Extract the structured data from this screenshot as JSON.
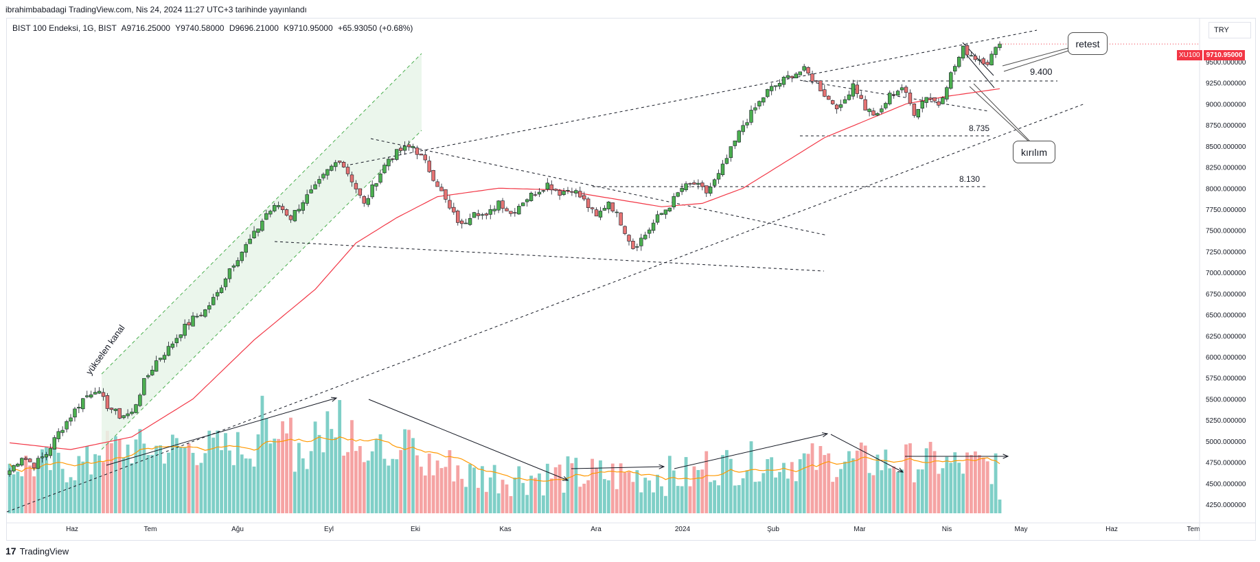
{
  "header": {
    "published_text": "ibrahimbabadagi TradingView.com, Nis 24, 2024 11:27 UTC+3 tarihinde yayınlandı"
  },
  "legend": {
    "symbol": "BIST 100 Endeksi, 1G, BIST",
    "open": "A9716.25000",
    "high": "Y9740.58000",
    "low": "D9696.21000",
    "close": "K9710.95000",
    "change": "+65.93050 (+0.68%)"
  },
  "currency": "TRY",
  "price_tag": {
    "ticker": "XU100",
    "value": "9710.95000",
    "ticker_color": "#f23645",
    "value_color": "#f23645"
  },
  "footer": {
    "logo": "17",
    "brand": "TradingView"
  },
  "annotations": {
    "retest": "retest",
    "kirilim": "kırılım",
    "channel_label": "yükselen kanal",
    "level_9400": "9.400",
    "level_8735": "8.735",
    "level_8130": "8.130"
  },
  "colors": {
    "up": "#26a69a",
    "down": "#ef5350",
    "candle_up_fill": "#4caf50",
    "candle_down_fill": "#e57373",
    "ma": "#f23645",
    "volume_ma": "#ff9800",
    "channel_fill": "#e8f5e9",
    "channel_line": "#4caf50"
  },
  "chart_data": {
    "type": "candlestick",
    "title": "BIST 100 Endeksi, 1G, BIST",
    "x_ticks": [
      "Haz",
      "Tem",
      "Ağu",
      "Eyl",
      "Eki",
      "Kas",
      "Ara",
      "2024",
      "Şub",
      "Mar",
      "Nis",
      "May",
      "Haz",
      "Tem"
    ],
    "y_ticks": [
      "9500.000000",
      "9250.000000",
      "9000.000000",
      "8750.000000",
      "8500.000000",
      "8250.000000",
      "8000.000000",
      "7750.000000",
      "7500.000000",
      "7250.000000",
      "7000.000000",
      "6750.000000",
      "6500.000000",
      "6250.000000",
      "6000.000000",
      "5750.000000",
      "5500.000000",
      "5250.000000",
      "5000.000000",
      "4750.000000",
      "4500.000000",
      "4250.000000"
    ],
    "ylim": [
      4150,
      9750
    ],
    "close_path": [
      [
        0,
        4650
      ],
      [
        3,
        4820
      ],
      [
        6,
        4720
      ],
      [
        9,
        4850
      ],
      [
        12,
        5100
      ],
      [
        15,
        5300
      ],
      [
        18,
        5500
      ],
      [
        21,
        5620
      ],
      [
        24,
        5420
      ],
      [
        27,
        5300
      ],
      [
        30,
        5330
      ],
      [
        33,
        5700
      ],
      [
        36,
        5950
      ],
      [
        39,
        6100
      ],
      [
        42,
        6300
      ],
      [
        45,
        6450
      ],
      [
        48,
        6550
      ],
      [
        51,
        6750
      ],
      [
        54,
        7050
      ],
      [
        57,
        7250
      ],
      [
        60,
        7450
      ],
      [
        63,
        7700
      ],
      [
        66,
        7800
      ],
      [
        69,
        7650
      ],
      [
        72,
        7850
      ],
      [
        75,
        8000
      ],
      [
        78,
        8200
      ],
      [
        81,
        8350
      ],
      [
        84,
        8100
      ],
      [
        87,
        7800
      ],
      [
        90,
        8100
      ],
      [
        93,
        8350
      ],
      [
        96,
        8450
      ],
      [
        99,
        8500
      ],
      [
        102,
        8300
      ],
      [
        105,
        8050
      ],
      [
        108,
        7750
      ],
      [
        111,
        7550
      ],
      [
        114,
        7750
      ],
      [
        117,
        7650
      ],
      [
        120,
        7850
      ],
      [
        123,
        7700
      ],
      [
        126,
        7850
      ],
      [
        129,
        7950
      ],
      [
        132,
        8050
      ],
      [
        135,
        7950
      ],
      [
        138,
        8000
      ],
      [
        141,
        7850
      ],
      [
        144,
        7650
      ],
      [
        147,
        7850
      ],
      [
        150,
        7600
      ],
      [
        153,
        7300
      ],
      [
        156,
        7450
      ],
      [
        159,
        7650
      ],
      [
        162,
        7800
      ],
      [
        165,
        8000
      ],
      [
        168,
        8050
      ],
      [
        171,
        7950
      ],
      [
        174,
        8150
      ],
      [
        177,
        8450
      ],
      [
        180,
        8750
      ],
      [
        183,
        8950
      ],
      [
        186,
        9150
      ],
      [
        189,
        9250
      ],
      [
        192,
        9350
      ],
      [
        195,
        9400
      ],
      [
        198,
        9250
      ],
      [
        201,
        9050
      ],
      [
        204,
        8950
      ],
      [
        207,
        9250
      ],
      [
        210,
        8950
      ],
      [
        213,
        8850
      ],
      [
        216,
        9100
      ],
      [
        219,
        9200
      ],
      [
        222,
        8900
      ],
      [
        225,
        9100
      ],
      [
        228,
        9000
      ],
      [
        231,
        9350
      ],
      [
        234,
        9650
      ],
      [
        237,
        9550
      ],
      [
        240,
        9500
      ],
      [
        243,
        9711
      ]
    ],
    "ma_path": [
      [
        0,
        4980
      ],
      [
        15,
        4900
      ],
      [
        30,
        5050
      ],
      [
        45,
        5500
      ],
      [
        60,
        6200
      ],
      [
        75,
        6800
      ],
      [
        85,
        7350
      ],
      [
        95,
        7650
      ],
      [
        105,
        7900
      ],
      [
        120,
        8000
      ],
      [
        135,
        7980
      ],
      [
        150,
        7860
      ],
      [
        160,
        7780
      ],
      [
        170,
        7820
      ],
      [
        180,
        8000
      ],
      [
        190,
        8300
      ],
      [
        200,
        8600
      ],
      [
        210,
        8800
      ],
      [
        220,
        9000
      ],
      [
        230,
        9090
      ],
      [
        243,
        9180
      ]
    ],
    "volume_trend_arrows": 6
  }
}
